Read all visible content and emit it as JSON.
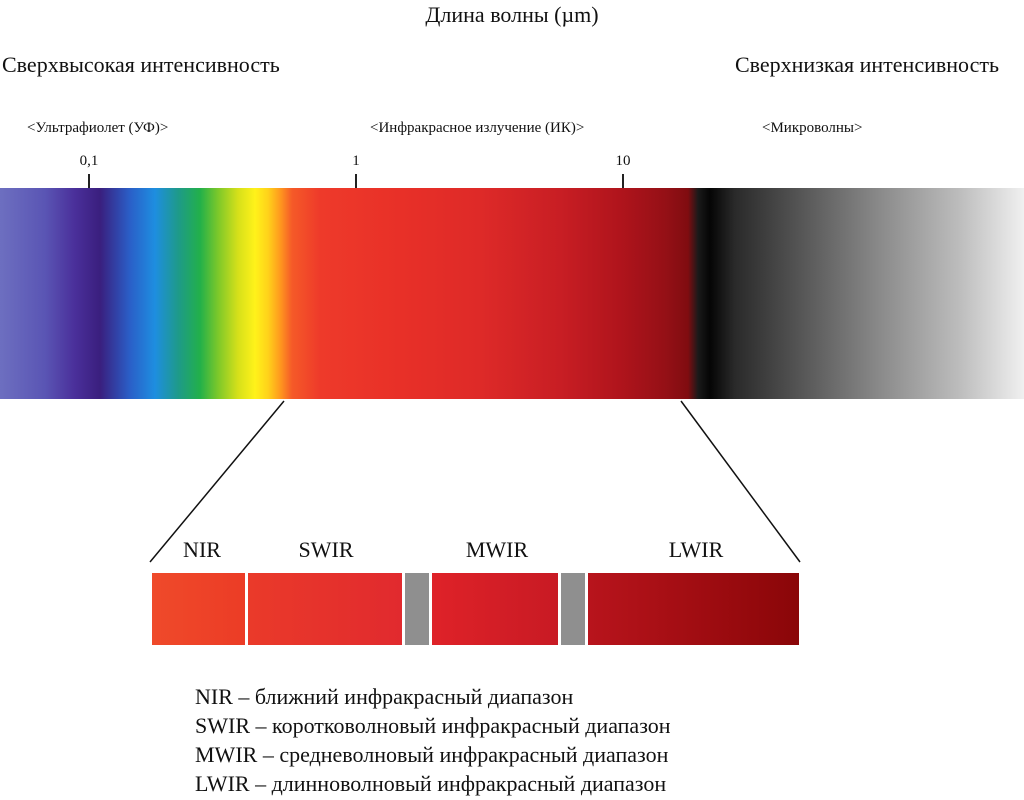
{
  "title": "Длина волны (µm)",
  "intensity": {
    "high": "Сверхвысокая интенсивность",
    "low": "Сверхнизкая интенсивность"
  },
  "regions": {
    "uv": "<Ультрафиолет (УФ)>",
    "ir": "<Инфракрасное излучение (ИК)>",
    "microwave": "<Микроволны>"
  },
  "ticks": [
    "0,1",
    "1",
    "10"
  ],
  "bands": [
    "NIR",
    "SWIR",
    "MWIR",
    "LWIR"
  ],
  "band_colors": {
    "nir": "#ee4028",
    "swir": "#e4302e",
    "mwir": "#c8202a",
    "lwir": "#8a0a0e",
    "gap": "#8f8f8f"
  },
  "legend": [
    "NIR – ближний инфракрасный диапазон",
    "SWIR – коротковолновый инфракрасный диапазон",
    "MWIR – средневолновый инфракрасный диапазон",
    "LWIR – длинноволновый инфракрасный диапазон"
  ]
}
